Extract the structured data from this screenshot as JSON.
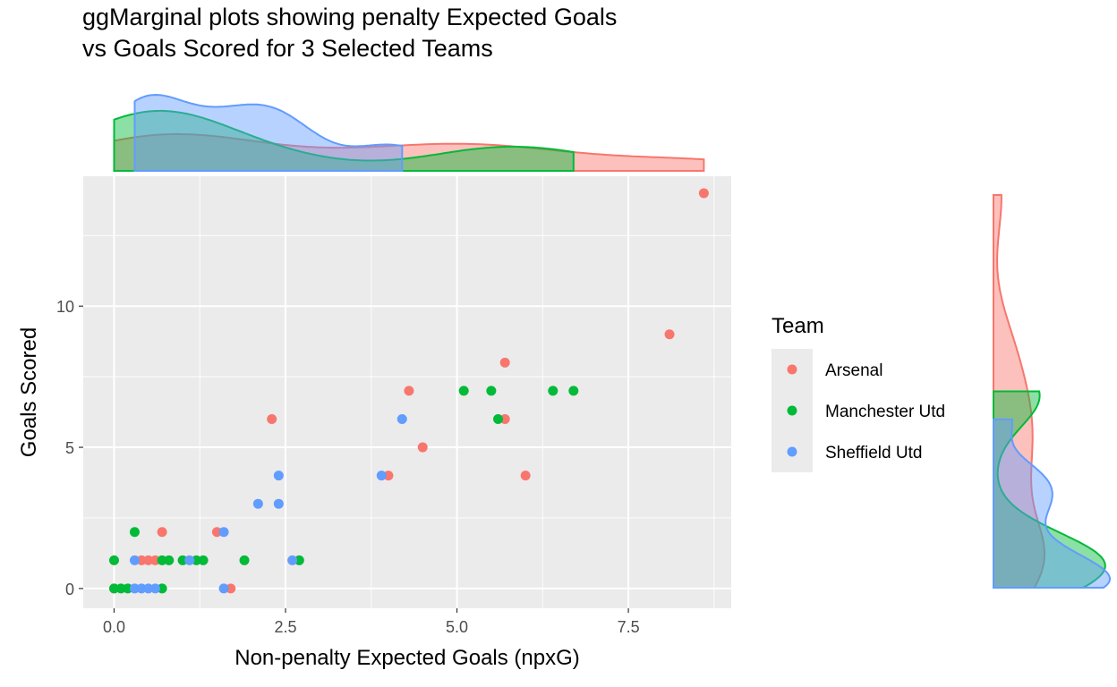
{
  "chart_data": {
    "type": "scatter",
    "title": [
      "ggMarginal plots showing penalty Expected Goals",
      "vs Goals Scored for 3 Selected Teams"
    ],
    "xlabel": "Non-penalty Expected Goals (npxG)",
    "ylabel": "Goals Scored",
    "xlim": [
      -0.45,
      9.0
    ],
    "ylim": [
      -0.7,
      14.6
    ],
    "x_ticks": [
      0.0,
      2.5,
      5.0,
      7.5
    ],
    "x_tick_labels": [
      "0.0",
      "2.5",
      "5.0",
      "7.5"
    ],
    "y_ticks": [
      0,
      5,
      10
    ],
    "y_tick_labels": [
      "0",
      "5",
      "10"
    ],
    "grid": true,
    "marginals": "density (top: npxG, right: Goals Scored)",
    "legend": {
      "title": "Team",
      "placement": "right"
    },
    "series": [
      {
        "name": "Arsenal",
        "color": "#F8766D",
        "points": [
          [
            0.0,
            0
          ],
          [
            0.4,
            1
          ],
          [
            0.5,
            1
          ],
          [
            0.6,
            1
          ],
          [
            0.7,
            2
          ],
          [
            1.5,
            2
          ],
          [
            1.7,
            0
          ],
          [
            2.3,
            6
          ],
          [
            4.0,
            4
          ],
          [
            4.3,
            7
          ],
          [
            4.5,
            5
          ],
          [
            5.7,
            8
          ],
          [
            5.7,
            6
          ],
          [
            6.0,
            4
          ],
          [
            8.1,
            9
          ],
          [
            8.6,
            14
          ]
        ]
      },
      {
        "name": "Manchester Utd",
        "color": "#00BA38",
        "points": [
          [
            0.0,
            1
          ],
          [
            0.0,
            0
          ],
          [
            0.1,
            0
          ],
          [
            0.2,
            0
          ],
          [
            0.3,
            2
          ],
          [
            0.7,
            0
          ],
          [
            0.7,
            1
          ],
          [
            0.8,
            1
          ],
          [
            1.0,
            1
          ],
          [
            1.2,
            1
          ],
          [
            1.3,
            1
          ],
          [
            1.9,
            1
          ],
          [
            2.7,
            1
          ],
          [
            5.1,
            7
          ],
          [
            5.5,
            7
          ],
          [
            5.6,
            6
          ],
          [
            6.4,
            7
          ],
          [
            6.7,
            7
          ]
        ]
      },
      {
        "name": "Sheffield Utd",
        "color": "#619CFF",
        "points": [
          [
            0.3,
            1
          ],
          [
            0.3,
            0
          ],
          [
            0.4,
            0
          ],
          [
            0.5,
            0
          ],
          [
            0.6,
            0
          ],
          [
            1.1,
            1
          ],
          [
            1.6,
            2
          ],
          [
            1.6,
            0
          ],
          [
            2.1,
            3
          ],
          [
            2.4,
            4
          ],
          [
            2.4,
            3
          ],
          [
            2.6,
            1
          ],
          [
            3.9,
            4
          ],
          [
            4.2,
            6
          ]
        ]
      }
    ]
  }
}
